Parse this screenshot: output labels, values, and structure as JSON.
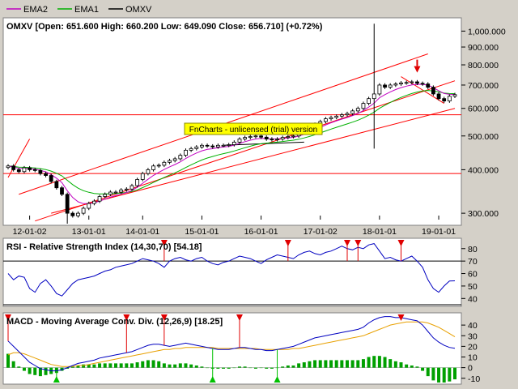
{
  "legend": [
    {
      "name": "EMA2",
      "color": "#c000c0"
    },
    {
      "name": "EMA1",
      "color": "#00b000"
    },
    {
      "name": "OMXV",
      "color": "#000000"
    }
  ],
  "price_panel": {
    "title": "OMXV [Open: 651.600  High: 660.200  Low: 649.090  Close: 656.710] (+0.72%)",
    "y_ticks": [
      "1,000.000",
      "900.000",
      "800.000",
      "700.000",
      "600.000",
      "500.000",
      "400.000",
      "300.000"
    ],
    "x_ticks": [
      "12-01-02",
      "13-01-01",
      "14-01-01",
      "15-01-01",
      "16-01-01",
      "17-01-02",
      "18-01-01",
      "19-01-01"
    ],
    "watermark": "FnCharts - unlicensed (trial) version"
  },
  "rsi_panel": {
    "title": "RSI - Relative Strength Index (14,30,70) [54.18]",
    "y_ticks": [
      "80",
      "70",
      "60",
      "50",
      "40"
    ]
  },
  "macd_panel": {
    "title": "MACD - Moving Average Conv. Div. (12,26,9) [18.25]",
    "y_ticks": [
      "40",
      "30",
      "20",
      "10",
      "0",
      "-10"
    ]
  },
  "colors": {
    "background": "#ffffff",
    "frame": "#d4d0c8",
    "candle": "#000000",
    "ema1": "#00b000",
    "ema2": "#c000c0",
    "channel": "#ff0000",
    "rsi_line": "#0000c0",
    "macd_line": "#0000c0",
    "signal_line": "#e8a000",
    "histogram": "#00a000",
    "signal_marker": "#e00000",
    "buy_marker": "#00c000",
    "watermark_bg": "#ffff00"
  },
  "chart_data": [
    {
      "type": "candlestick",
      "name": "OMXV",
      "y_scale": "log",
      "ylim": [
        280,
        1080
      ],
      "x_labels": [
        "12-01-02",
        "13-01-01",
        "14-01-01",
        "15-01-01",
        "16-01-01",
        "17-01-02",
        "18-01-01",
        "19-01-01"
      ],
      "closes": [
        410,
        400,
        395,
        405,
        400,
        398,
        390,
        385,
        370,
        355,
        340,
        300,
        295,
        300,
        310,
        320,
        325,
        335,
        340,
        345,
        345,
        350,
        352,
        360,
        375,
        390,
        400,
        410,
        412,
        420,
        425,
        430,
        440,
        455,
        460,
        465,
        470,
        468,
        465,
        470,
        470,
        472,
        480,
        490,
        495,
        498,
        500,
        496,
        490,
        488,
        490,
        495,
        498,
        500,
        510,
        520,
        530,
        540,
        550,
        560,
        565,
        570,
        575,
        580,
        590,
        600,
        620,
        640,
        660,
        700,
        690,
        700,
        705,
        710,
        712,
        715,
        708,
        705,
        690,
        660,
        640,
        630,
        650,
        657
      ],
      "last": {
        "open": 651.6,
        "high": 660.2,
        "low": 649.09,
        "close": 656.71,
        "change_pct": 0.72
      },
      "horizontal_lines": [
        575,
        390
      ],
      "ema1_last": 640,
      "ema2_last": 660
    },
    {
      "type": "line",
      "name": "RSI",
      "params": [
        14,
        30,
        70
      ],
      "last": 54.18,
      "ylim": [
        35,
        87
      ],
      "levels": [
        70,
        30
      ],
      "values": [
        60,
        55,
        58,
        57,
        48,
        45,
        52,
        55,
        50,
        44,
        42,
        47,
        52,
        55,
        56,
        57,
        58,
        60,
        62,
        63,
        65,
        66,
        67,
        68,
        70,
        72,
        71,
        70,
        68,
        65,
        70,
        72,
        73,
        71,
        70,
        72,
        73,
        70,
        68,
        67,
        69,
        70,
        72,
        74,
        73,
        72,
        70,
        68,
        71,
        73,
        75,
        74,
        73,
        72,
        75,
        77,
        78,
        76,
        75,
        77,
        78,
        80,
        82,
        80,
        79,
        81,
        80,
        83,
        84,
        78,
        72,
        73,
        71,
        70,
        72,
        74,
        70,
        65,
        55,
        48,
        45,
        50,
        54,
        54.18
      ]
    },
    {
      "type": "line+bar",
      "name": "MACD",
      "params": [
        12,
        26,
        9
      ],
      "last": 18.25,
      "ylim": [
        -14,
        50
      ],
      "macd": [
        25,
        20,
        15,
        10,
        5,
        2,
        -1,
        -2,
        -3,
        -3,
        -2,
        0,
        2,
        4,
        5,
        6,
        7,
        9,
        10,
        11,
        12,
        13,
        14,
        15,
        17,
        19,
        21,
        22,
        22,
        21,
        20,
        21,
        22,
        23,
        22,
        21,
        20,
        19,
        18,
        17,
        17,
        17,
        18,
        19,
        19,
        18,
        17,
        17,
        16,
        16,
        17,
        18,
        19,
        20,
        22,
        24,
        26,
        28,
        29,
        30,
        31,
        32,
        33,
        34,
        35,
        36,
        38,
        42,
        45,
        47,
        48,
        48,
        47,
        47,
        46,
        45,
        44,
        40,
        34,
        28,
        24,
        21,
        19,
        18.25
      ],
      "signal": [
        12,
        14,
        14,
        13,
        11,
        9,
        7,
        5,
        3,
        2,
        1,
        1,
        1,
        2,
        2,
        3,
        4,
        5,
        6,
        7,
        8,
        9,
        10,
        11,
        12,
        13,
        14,
        15,
        16,
        17,
        17,
        18,
        18,
        19,
        19,
        19,
        19,
        19,
        19,
        18,
        18,
        18,
        18,
        18,
        18,
        18,
        18,
        17,
        17,
        17,
        17,
        17,
        17,
        18,
        18,
        19,
        20,
        21,
        22,
        23,
        24,
        25,
        26,
        27,
        28,
        29,
        30,
        32,
        34,
        36,
        38,
        40,
        41,
        42,
        43,
        43,
        43,
        43,
        42,
        40,
        38,
        35,
        32,
        29
      ],
      "histogram": [
        13,
        6,
        1,
        -3,
        -6,
        -7,
        -8,
        -7,
        -6,
        -5,
        -3,
        -1,
        1,
        2,
        3,
        3,
        3,
        4,
        4,
        4,
        4,
        4,
        4,
        4,
        5,
        6,
        7,
        7,
        6,
        4,
        3,
        3,
        4,
        4,
        3,
        2,
        1,
        0,
        -1,
        -1,
        -1,
        -1,
        0,
        1,
        1,
        0,
        -1,
        0,
        -1,
        -1,
        0,
        1,
        2,
        2,
        4,
        5,
        6,
        7,
        7,
        7,
        7,
        7,
        7,
        7,
        7,
        7,
        8,
        10,
        11,
        11,
        10,
        8,
        6,
        5,
        3,
        2,
        1,
        -3,
        -8,
        -12,
        -14,
        -14,
        -13,
        -11
      ]
    }
  ]
}
